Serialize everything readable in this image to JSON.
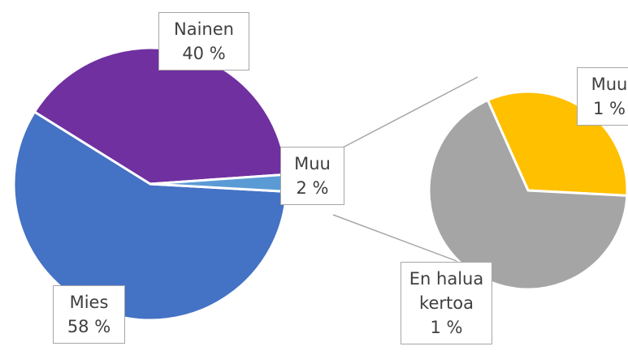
{
  "chart_data": [
    {
      "type": "pie",
      "categories": [
        "Mies",
        "Nainen",
        "Muu"
      ],
      "values": [
        58,
        40,
        2
      ],
      "value_labels": [
        "58 %",
        "40 %",
        "2 %"
      ],
      "colors": [
        "#4472c4",
        "#7030a0",
        "#5b9bd5"
      ]
    },
    {
      "type": "pie",
      "categories": [
        "Muu",
        "En halua kertoa"
      ],
      "values": [
        0.65,
        1.35
      ],
      "value_labels": [
        "1 %",
        "1 %"
      ],
      "colors": [
        "#ffc000",
        "#a5a5a5"
      ]
    }
  ]
}
